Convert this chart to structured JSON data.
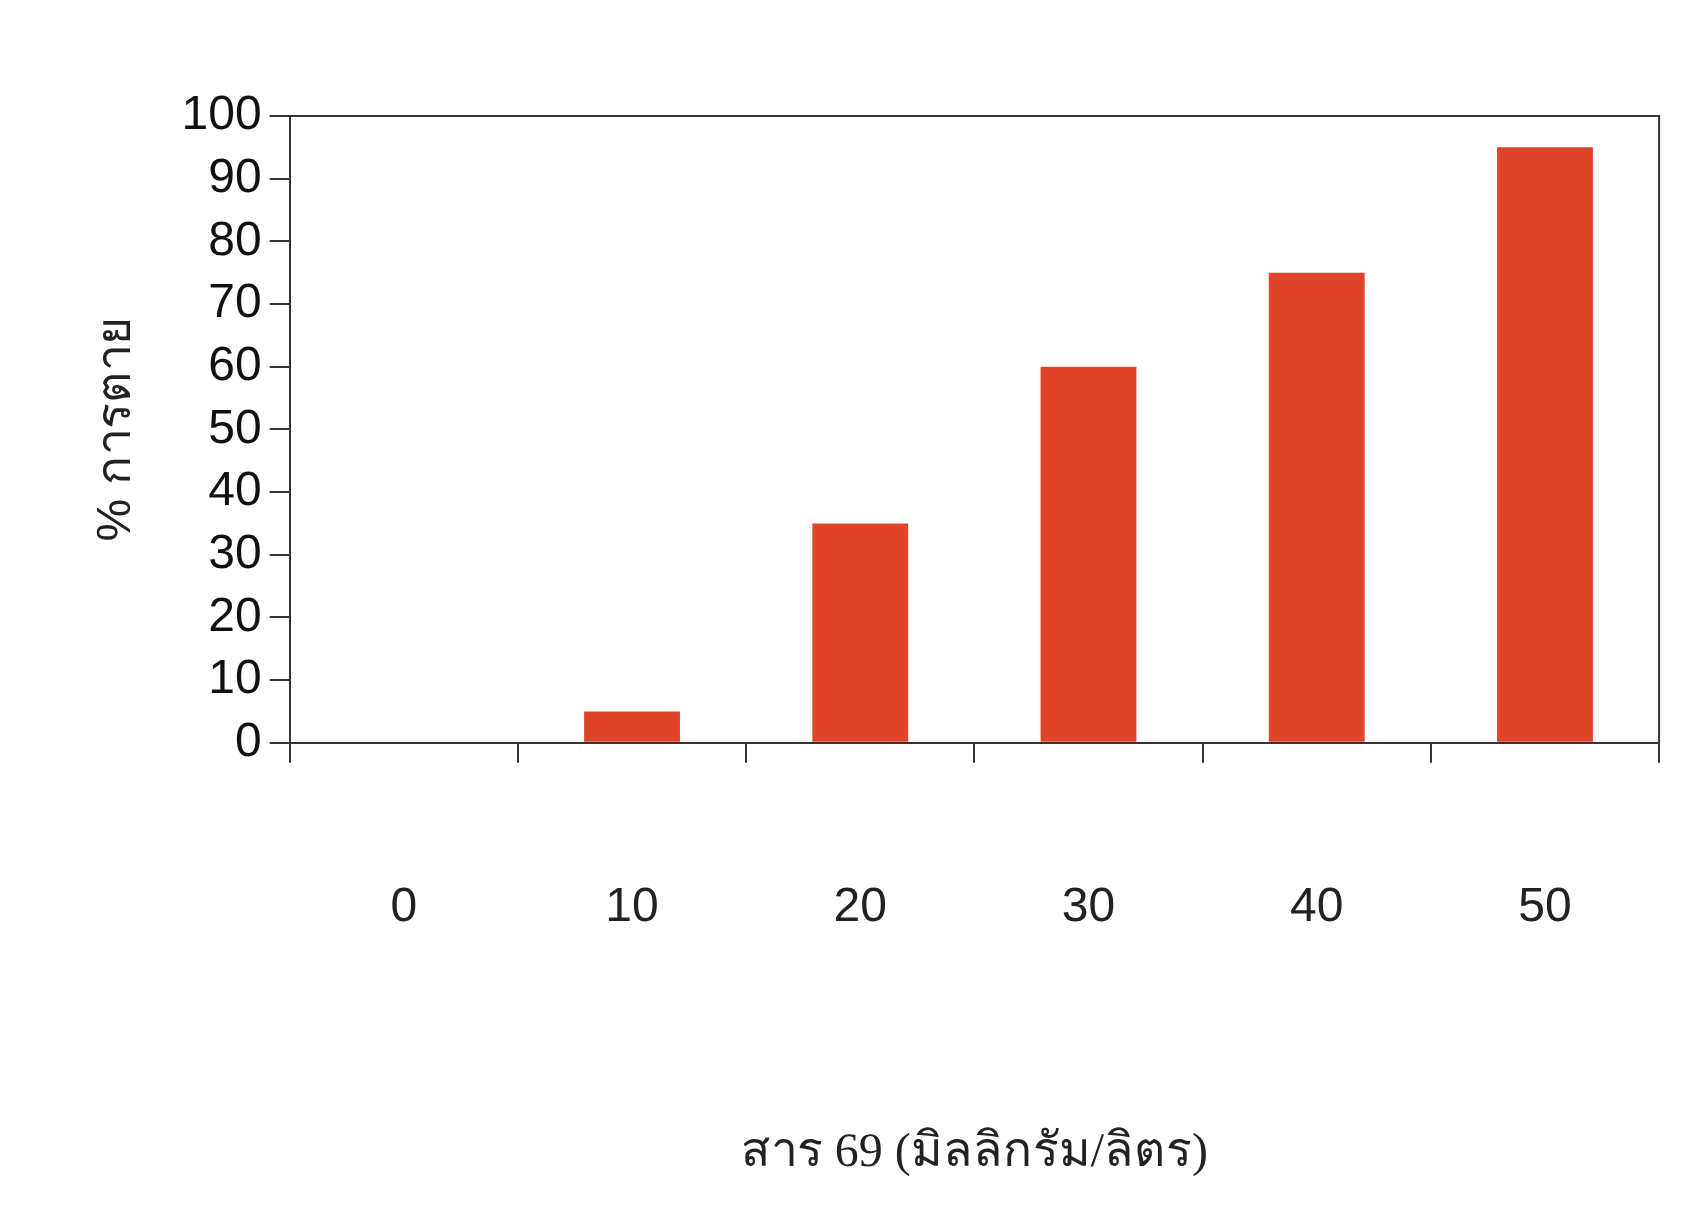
{
  "chart_data": {
    "type": "bar",
    "xlabel": "สาร 69 (มิลลิกรัม/ลิตร)",
    "ylabel": "% การตาย",
    "categories": [
      "0",
      "10",
      "20",
      "30",
      "40",
      "50"
    ],
    "values": [
      0,
      5,
      35,
      60,
      75,
      95
    ],
    "color": "#e0452a",
    "ylim": [
      0,
      100
    ],
    "yticks": [
      0,
      10,
      20,
      30,
      40,
      50,
      60,
      70,
      80,
      90,
      100
    ],
    "grid": false,
    "legend": false
  }
}
